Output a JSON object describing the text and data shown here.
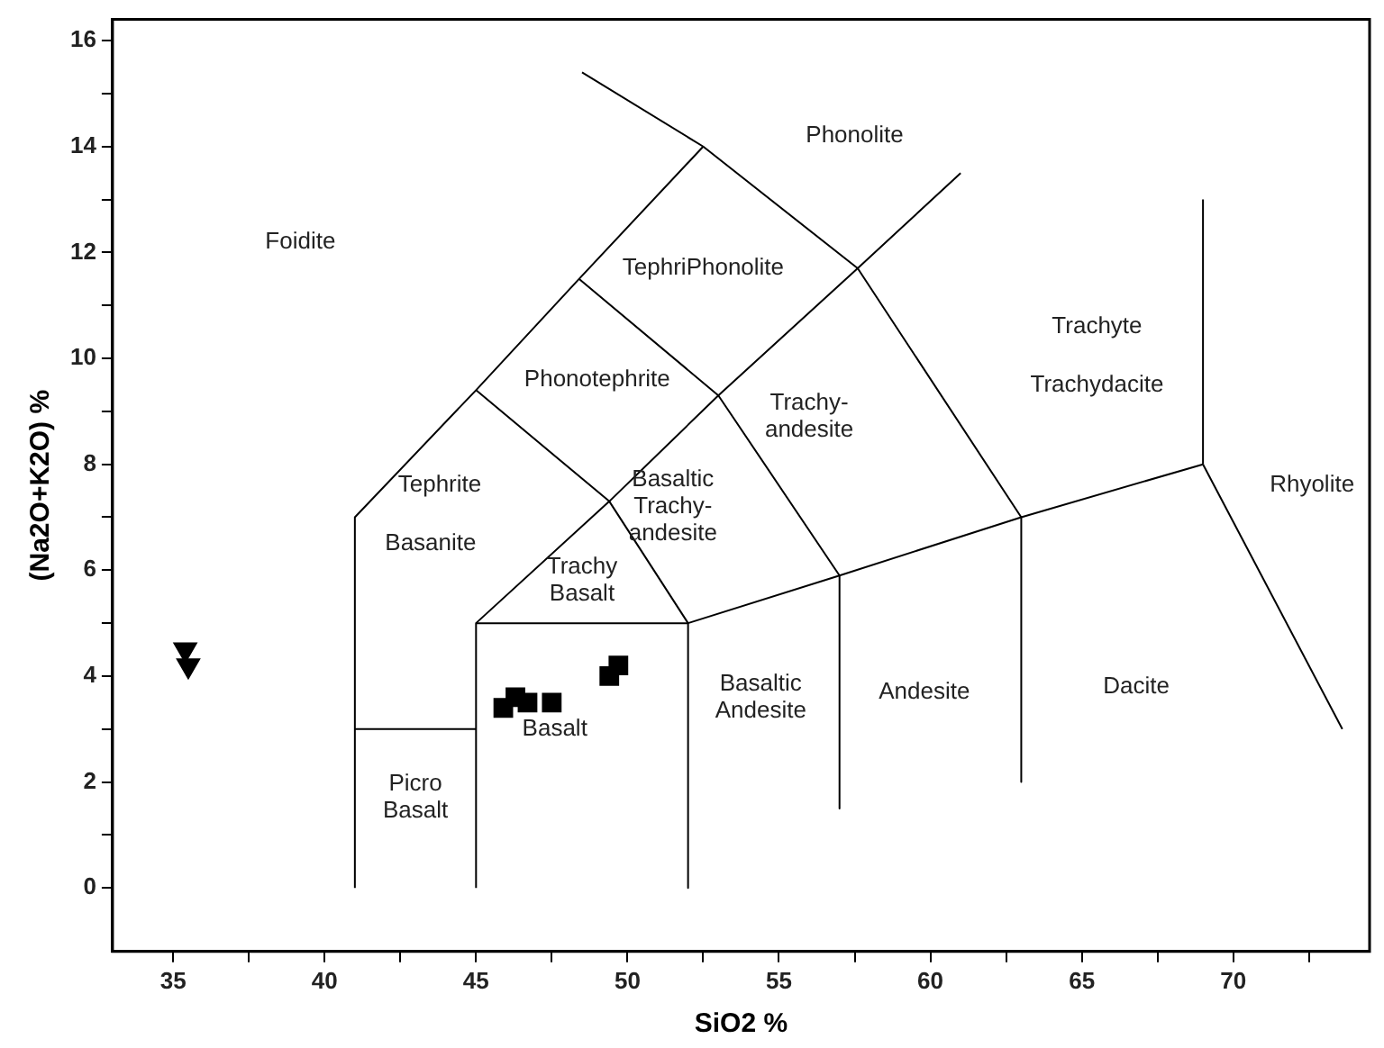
{
  "chart_data": {
    "type": "scatter",
    "xlabel": "SiO2 %",
    "ylabel": "(Na2O+K2O) %",
    "xlim": [
      33,
      74.5
    ],
    "ylim": [
      -1.2,
      16.4
    ],
    "xticks": [
      35,
      {
        "value": 37.5,
        "label": null
      },
      40,
      {
        "value": 42.5,
        "label": null
      },
      45,
      {
        "value": 47.5,
        "label": null
      },
      50,
      {
        "value": 52.5,
        "label": null
      },
      55,
      {
        "value": 57.5,
        "label": null
      },
      60,
      {
        "value": 62.5,
        "label": null
      },
      65,
      {
        "value": 67.5,
        "label": null
      },
      70,
      {
        "value": 72.5,
        "label": null
      }
    ],
    "yticks": [
      0,
      {
        "value": 1,
        "label": null
      },
      2,
      {
        "value": 3,
        "label": null
      },
      4,
      {
        "value": 5,
        "label": null
      },
      6,
      {
        "value": 7,
        "label": null
      },
      8,
      {
        "value": 9,
        "label": null
      },
      10,
      {
        "value": 11,
        "label": null
      },
      12,
      {
        "value": 13,
        "label": null
      },
      14,
      {
        "value": 15,
        "label": null
      },
      16
    ],
    "grid": false,
    "legend": false,
    "series": [
      {
        "type": "line",
        "color": "#000000",
        "marker": "none",
        "x": [
          41,
          41,
          45,
          48.4,
          52.5
        ],
        "values": [
          0,
          7,
          9.4,
          11.5,
          14
        ]
      },
      {
        "type": "line",
        "color": "#000000",
        "marker": "none",
        "x": [
          48.5,
          52.5,
          57.6,
          63
        ],
        "values": [
          15.4,
          14,
          11.7,
          7
        ]
      },
      {
        "type": "line",
        "color": "#000000",
        "marker": "none",
        "x": [
          45,
          49.4,
          52
        ],
        "values": [
          9.4,
          7.3,
          5
        ]
      },
      {
        "type": "line",
        "color": "#000000",
        "marker": "none",
        "x": [
          48.4,
          53,
          57
        ],
        "values": [
          11.5,
          9.3,
          5.9
        ]
      },
      {
        "type": "line",
        "color": "#000000",
        "marker": "none",
        "x": [
          45,
          49.4,
          53,
          57.6,
          61
        ],
        "values": [
          5,
          7.3,
          9.3,
          11.7,
          13.5
        ]
      },
      {
        "type": "line",
        "color": "#000000",
        "marker": "none",
        "x": [
          41,
          45
        ],
        "values": [
          3,
          3
        ]
      },
      {
        "type": "line",
        "color": "#000000",
        "marker": "none",
        "x": [
          45,
          45,
          52,
          52
        ],
        "values": [
          0,
          5,
          5,
          0
        ]
      },
      {
        "type": "line",
        "color": "#000000",
        "marker": "none",
        "x": [
          52,
          57,
          63,
          69
        ],
        "values": [
          5,
          5.9,
          7,
          8
        ]
      },
      {
        "type": "line",
        "color": "#000000",
        "marker": "none",
        "x": [
          57,
          57
        ],
        "values": [
          5.9,
          1.5
        ]
      },
      {
        "type": "line",
        "color": "#000000",
        "marker": "none",
        "x": [
          63,
          63
        ],
        "values": [
          7,
          2
        ]
      },
      {
        "type": "line",
        "color": "#000000",
        "marker": "none",
        "x": [
          69,
          69
        ],
        "values": [
          8,
          13
        ]
      },
      {
        "type": "line",
        "color": "#000000",
        "marker": "none",
        "x": [
          69,
          73.6
        ],
        "values": [
          8,
          3
        ]
      },
      {
        "type": "scatter",
        "color": "#000000",
        "marker": "triangle",
        "x": [
          35.4,
          35.5
        ],
        "values": [
          4.5,
          4.2
        ]
      },
      {
        "type": "scatter",
        "color": "#000000",
        "marker": "square",
        "x": [
          45.9,
          46.3,
          46.7,
          47.5,
          49.4,
          49.7
        ],
        "values": [
          3.4,
          3.6,
          3.5,
          3.5,
          4.0,
          4.2
        ]
      }
    ],
    "annotations": [
      "Foidite",
      "Phonolite",
      "TephriPhonolite",
      "Phonotephrite",
      "Tephrite",
      "Basanite",
      "Basaltic\nTrachy-\nandesite",
      "Trachy-\nandesite",
      "Trachyte",
      "Trachydacite",
      "Rhyolite",
      "Trachy\nBasalt",
      "Basalt",
      "Basaltic\nAndesite",
      "Andesite",
      "Dacite",
      "Picro\nBasalt"
    ]
  }
}
